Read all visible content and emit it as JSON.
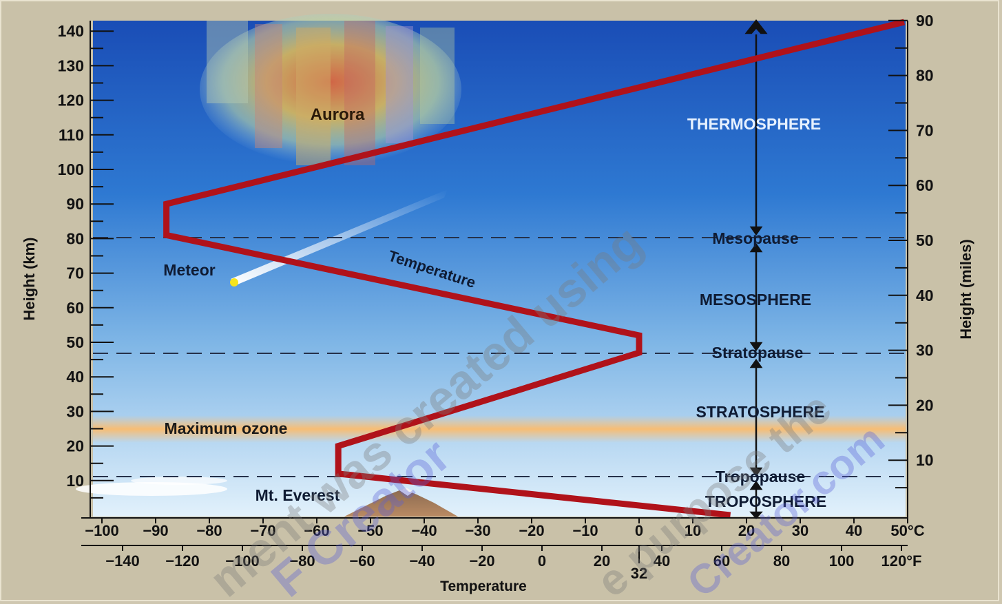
{
  "diagram": {
    "left_axis": {
      "label": "Height (km)",
      "ticks": [
        "140",
        "130",
        "120",
        "110",
        "100",
        "90",
        "80",
        "70",
        "60",
        "50",
        "40",
        "30",
        "20",
        "10"
      ]
    },
    "right_axis": {
      "label": "Height (miles)",
      "ticks": [
        "90",
        "80",
        "70",
        "60",
        "50",
        "40",
        "30",
        "20",
        "10"
      ]
    },
    "celsius_axis": {
      "ticks": [
        "−100",
        "−90",
        "−80",
        "−70",
        "−60",
        "−50",
        "−40",
        "−30",
        "−20",
        "−10",
        "0",
        "10",
        "20",
        "30",
        "40",
        "50°C"
      ]
    },
    "fahrenheit_axis": {
      "ticks": [
        "−140",
        "−120",
        "−100",
        "−80",
        "−60",
        "−40",
        "−20",
        "0",
        "20",
        "40",
        "60",
        "80",
        "100",
        "120°F"
      ],
      "extra_tick": "32"
    },
    "x_title": "Temperature",
    "layers": {
      "thermosphere": "THERMOSPHERE",
      "mesopause": "Mesopause",
      "mesosphere": "MESOSPHERE",
      "stratopause": "Stratopause",
      "stratosphere": "STRATOSPHERE",
      "tropopause": "Tropopause",
      "troposphere": "TROPOSPHERE"
    },
    "annotations": {
      "aurora": "Aurora",
      "meteor": "Meteor",
      "temperature_curve": "Temperature",
      "ozone": "Maximum ozone",
      "everest": "Mt. Everest"
    },
    "watermark": [
      "ment was created using",
      "F Creator",
      "e purpose the",
      "Creator.com"
    ],
    "colors": {
      "temperature_line": "#b0121a",
      "sky_top": "#1a4fb8",
      "sky_bottom": "#dbeef9",
      "ozone_band": "#f6c27e"
    },
    "temperature_profile_km_celsius": [
      [
        0,
        17
      ],
      [
        12,
        -56
      ],
      [
        20,
        -56
      ],
      [
        47,
        0
      ],
      [
        52,
        0
      ],
      [
        81,
        -88
      ],
      [
        90,
        -88
      ],
      [
        146,
        50
      ]
    ]
  }
}
